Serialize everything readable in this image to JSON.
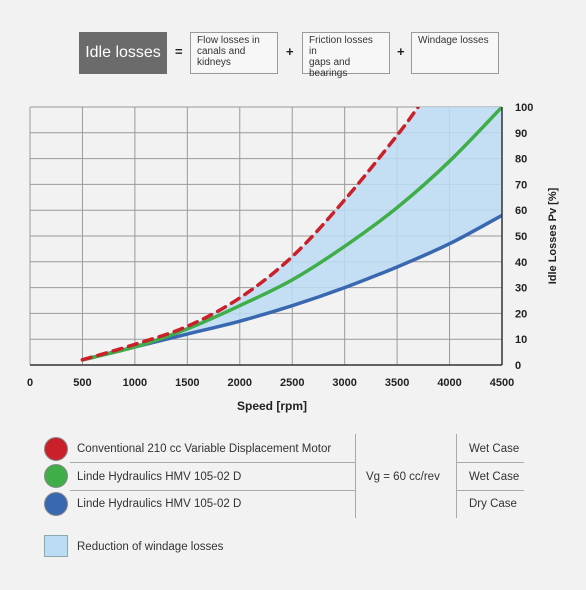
{
  "header": {
    "idle_label": "Idle losses",
    "equals": "=",
    "plus": "+",
    "box1": [
      "Flow losses in",
      "canals and",
      "kidneys"
    ],
    "box2": [
      "Friction losses in",
      "gaps and",
      "bearings"
    ],
    "box3": [
      "Windage losses"
    ]
  },
  "legend": {
    "items": [
      {
        "label": "Conventional 210 cc Variable Displacement Motor",
        "color": "#c9202a",
        "case": "Wet Case"
      },
      {
        "label": "Linde Hydraulics HMV 105-02 D",
        "color": "#3fae49",
        "case": "Wet Case"
      },
      {
        "label": "Linde Hydraulics HMV 105-02 D",
        "color": "#3a68b0",
        "case": "Dry Case"
      }
    ],
    "vg": "Vg = 60 cc/rev",
    "area_label": "Reduction of windage losses",
    "area_color": "#bcdcf5"
  },
  "chart_data": {
    "type": "line",
    "xlabel": "Speed [rpm]",
    "ylabel": "Idle Losses Pv [%]",
    "xlim": [
      0,
      4500
    ],
    "ylim": [
      0,
      100
    ],
    "x_ticks": [
      0,
      500,
      1000,
      1500,
      2000,
      2500,
      3000,
      3500,
      4000,
      4500
    ],
    "y_ticks": [
      0,
      10,
      20,
      30,
      40,
      50,
      60,
      70,
      80,
      90,
      100
    ],
    "grid": true,
    "series": [
      {
        "name": "Conventional 210 cc Variable Displacement Motor",
        "style": "dashed",
        "color": "#c9202a",
        "x": [
          500,
          1000,
          1500,
          2000,
          2500,
          3000,
          3500,
          3700
        ],
        "y": [
          2,
          8,
          15,
          26,
          42,
          64,
          89,
          100
        ]
      },
      {
        "name": "Linde Hydraulics HMV 105-02 D Wet Case",
        "style": "solid",
        "color": "#3fae49",
        "x": [
          500,
          1000,
          1500,
          2000,
          2500,
          3000,
          3500,
          4000,
          4500
        ],
        "y": [
          2,
          7,
          14,
          23,
          33,
          46,
          61,
          79,
          100
        ]
      },
      {
        "name": "Linde Hydraulics HMV 105-02 D Dry Case",
        "style": "solid",
        "color": "#3a68b0",
        "x": [
          500,
          1000,
          1500,
          2000,
          2500,
          3000,
          3500,
          4000,
          4500
        ],
        "y": [
          2,
          7,
          12,
          17,
          23,
          30,
          38,
          47,
          58
        ]
      }
    ],
    "shaded_area": {
      "name": "Reduction of windage losses",
      "between": [
        "Conventional 210 cc Variable Displacement Motor",
        "Linde Hydraulics HMV 105-02 D Dry Case"
      ],
      "color": "#bcdcf5"
    }
  }
}
